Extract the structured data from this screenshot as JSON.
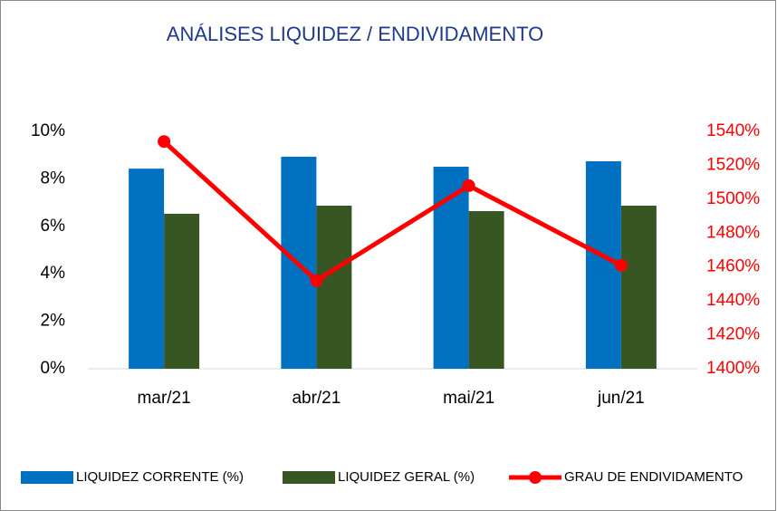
{
  "chart_data": {
    "type": "bar",
    "title": "ANÁLISES LIQUIDEZ / ENDIVIDAMENTO",
    "categories": [
      "mar/21",
      "abr/21",
      "mai/21",
      "jun/21"
    ],
    "series": [
      {
        "name": "LIQUIDEZ CORRENTE  (%)",
        "color": "#0070c0",
        "type": "bar",
        "values": [
          8.43,
          8.93,
          8.51,
          8.74
        ]
      },
      {
        "name": "LIQUIDEZ GERAL  (%)",
        "color": "#375623",
        "type": "bar",
        "values": [
          6.53,
          6.87,
          6.64,
          6.87
        ]
      },
      {
        "name": "GRAU DE ENDIVIDAMENTO",
        "color": "#ff0000",
        "type": "line",
        "axis": "y2",
        "values": [
          1534,
          1452,
          1508,
          1461
        ]
      }
    ],
    "ylim": [
      0,
      10
    ],
    "yticks": [
      {
        "value": 0,
        "label": "0%"
      },
      {
        "value": 2,
        "label": "2%"
      },
      {
        "value": 4,
        "label": "4%"
      },
      {
        "value": 6,
        "label": "6%"
      },
      {
        "value": 8,
        "label": "8%"
      },
      {
        "value": 10,
        "label": "10%"
      }
    ],
    "y2lim": [
      1400,
      1540
    ],
    "y2ticks": [
      {
        "value": 1400,
        "label": "1400%"
      },
      {
        "value": 1420,
        "label": "1420%"
      },
      {
        "value": 1440,
        "label": "1440%"
      },
      {
        "value": 1460,
        "label": "1460%"
      },
      {
        "value": 1480,
        "label": "1480%"
      },
      {
        "value": 1500,
        "label": "1500%"
      },
      {
        "value": 1520,
        "label": "1520%"
      },
      {
        "value": 1540,
        "label": "1540%"
      }
    ],
    "legend": "bottom"
  }
}
